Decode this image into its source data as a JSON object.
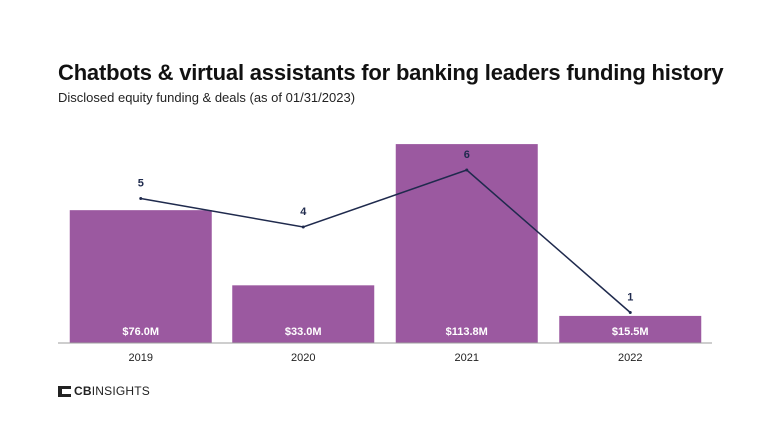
{
  "header": {
    "title": "Chatbots & virtual assistants for banking leaders funding history",
    "subtitle": "Disclosed equity funding & deals (as of 01/31/2023)"
  },
  "brand": {
    "logo_strong": "CB",
    "logo_rest": "INSIGHTS"
  },
  "colors": {
    "bar": "#9b59a0",
    "line": "#1f2a4d",
    "axis": "#9e9e9e",
    "bar_label": "#ffffff",
    "text": "#222222"
  },
  "chart_data": {
    "type": "bar",
    "categories": [
      "2019",
      "2020",
      "2021",
      "2022"
    ],
    "series": [
      {
        "values": [
          76.0,
          33.0,
          113.8,
          15.5
        ],
        "labels": [
          "$76.0M",
          "$33.0M",
          "$113.8M",
          "$15.5M"
        ],
        "chart": "bar"
      },
      {
        "values": [
          5,
          4,
          6,
          1
        ],
        "labels": [
          "5",
          "4",
          "6",
          "1"
        ],
        "chart": "line"
      }
    ],
    "ylim_funding": [
      0,
      115
    ],
    "ylim_deals": [
      0,
      7
    ],
    "grid": false,
    "legend": "none"
  }
}
